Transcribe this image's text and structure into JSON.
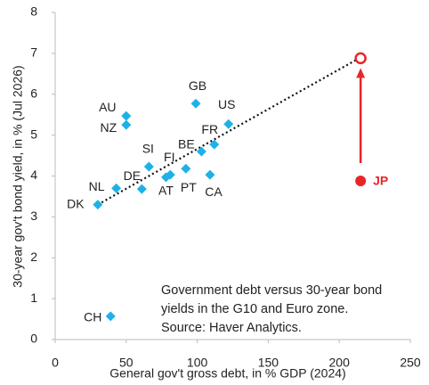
{
  "chart_data": {
    "type": "scatter",
    "x_label": "General gov't gross debt, in % GDP (2024)",
    "y_label": "30-year gov't bond yield, in % (Jul 2026)",
    "annotation": [
      "Government debt versus 30-year bond",
      "yields in the G10 and Euro zone.",
      "Source: Haver Analytics."
    ],
    "labels": [
      "DK",
      "NL",
      "DE",
      "SI",
      "FI",
      "AT",
      "PT",
      "BE",
      "CA",
      "FR",
      "US",
      "GB",
      "AU",
      "NZ",
      "CH"
    ],
    "x": [
      30,
      43,
      61,
      66,
      81,
      78,
      92,
      103,
      109,
      112,
      122,
      99,
      50,
      50,
      39
    ],
    "y": [
      3.3,
      3.7,
      3.68,
      4.23,
      4.03,
      3.97,
      4.18,
      4.6,
      4.03,
      4.77,
      5.27,
      5.77,
      5.47,
      5.25,
      0.57
    ],
    "color": "#1fb1e6",
    "highlight": {
      "label": "JP",
      "x": 215,
      "y": 3.88,
      "projected_y": 6.88,
      "color": "#e8262a"
    },
    "trendline": {
      "x": [
        30,
        215
      ],
      "y": [
        3.3,
        6.9
      ]
    },
    "xlim": [
      0,
      250
    ],
    "xticks": [
      0,
      50,
      100,
      150,
      200,
      250
    ],
    "ylim": [
      0,
      8
    ],
    "yticks": [
      0,
      1,
      2,
      3,
      4,
      5,
      6,
      7,
      8
    ]
  }
}
